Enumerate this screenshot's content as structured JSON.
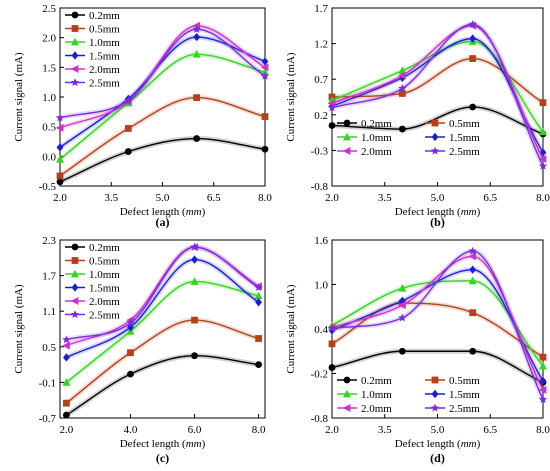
{
  "x_unit_parts": [
    "Defect length (",
    "mm",
    ")"
  ],
  "y_label": "Current signal (mA)",
  "colors": {
    "0.2mm": "#000000",
    "0.5mm": "#b5411c",
    "1.0mm": "#35d421",
    "1.5mm": "#1c1fd0",
    "2.0mm": "#cc33cc",
    "2.5mm": "#7a2fd6"
  },
  "chart_data": [
    {
      "type": "line",
      "panel_label": "(a)",
      "x_ticks": [
        "2.0",
        "3.5",
        "5.0",
        "6.5",
        "8.0"
      ],
      "y_ticks": [
        "-0.5",
        "0.0",
        "0.5",
        "1.0",
        "1.5",
        "2.0",
        "2.5"
      ],
      "xlim": [
        2.0,
        8.0
      ],
      "ylim": [
        -0.5,
        2.5
      ],
      "legend_position": "top-left",
      "legend_layout": "column",
      "x": [
        2.0,
        4.0,
        6.0,
        8.0
      ],
      "series": [
        {
          "name": "0.2mm",
          "marker": "circle",
          "values": [
            -0.43,
            0.08,
            0.3,
            0.12
          ]
        },
        {
          "name": "0.5mm",
          "marker": "square",
          "values": [
            -0.33,
            0.47,
            0.99,
            0.67
          ]
        },
        {
          "name": "1.0mm",
          "marker": "triangle-up",
          "values": [
            -0.05,
            0.9,
            1.72,
            1.42
          ]
        },
        {
          "name": "1.5mm",
          "marker": "diamond",
          "values": [
            0.15,
            0.97,
            2.01,
            1.6
          ]
        },
        {
          "name": "2.0mm",
          "marker": "triangle-left",
          "values": [
            0.48,
            0.92,
            2.2,
            1.5
          ]
        },
        {
          "name": "2.5mm",
          "marker": "star",
          "values": [
            0.65,
            0.94,
            2.14,
            1.35
          ]
        }
      ]
    },
    {
      "type": "line",
      "panel_label": "(b)",
      "x_ticks": [
        "2.0",
        "3.5",
        "5.0",
        "6.5",
        "8.0"
      ],
      "y_ticks": [
        "-0.8",
        "-0.3",
        "0.2",
        "0.7",
        "1.2",
        "1.7"
      ],
      "xlim": [
        2.0,
        8.0
      ],
      "ylim": [
        -0.8,
        1.7
      ],
      "legend_position": "bottom-left",
      "legend_layout": "two-column",
      "x": [
        2.0,
        4.0,
        6.0,
        8.0
      ],
      "series": [
        {
          "name": "0.2mm",
          "marker": "circle",
          "values": [
            0.05,
            0.0,
            0.31,
            -0.07
          ]
        },
        {
          "name": "0.5mm",
          "marker": "square",
          "values": [
            0.45,
            0.5,
            0.99,
            0.37
          ]
        },
        {
          "name": "1.0mm",
          "marker": "triangle-up",
          "values": [
            0.4,
            0.82,
            1.23,
            -0.04
          ]
        },
        {
          "name": "1.5mm",
          "marker": "diamond",
          "values": [
            0.32,
            0.72,
            1.27,
            -0.33
          ]
        },
        {
          "name": "2.0mm",
          "marker": "triangle-left",
          "values": [
            0.36,
            0.75,
            1.45,
            -0.42
          ]
        },
        {
          "name": "2.5mm",
          "marker": "star",
          "values": [
            0.3,
            0.57,
            1.47,
            -0.52
          ]
        }
      ]
    },
    {
      "type": "line",
      "panel_label": "(c)",
      "x_ticks": [
        "2.0",
        "4.0",
        "6.0",
        "8.0"
      ],
      "y_ticks": [
        "-0.7",
        "-0.1",
        "0.5",
        "1.1",
        "1.7",
        "2.3"
      ],
      "xlim": [
        1.8,
        8.2
      ],
      "ylim": [
        -0.7,
        2.3
      ],
      "legend_position": "top-left",
      "legend_layout": "column",
      "x": [
        2.0,
        4.0,
        6.0,
        8.0
      ],
      "series": [
        {
          "name": "0.2mm",
          "marker": "circle",
          "values": [
            -0.65,
            0.04,
            0.35,
            0.2
          ]
        },
        {
          "name": "0.5mm",
          "marker": "square",
          "values": [
            -0.45,
            0.4,
            0.95,
            0.64
          ]
        },
        {
          "name": "1.0mm",
          "marker": "triangle-up",
          "values": [
            -0.1,
            0.76,
            1.6,
            1.36
          ]
        },
        {
          "name": "1.5mm",
          "marker": "diamond",
          "values": [
            0.32,
            0.83,
            1.97,
            1.25
          ]
        },
        {
          "name": "2.0mm",
          "marker": "triangle-left",
          "values": [
            0.52,
            0.95,
            2.18,
            1.52
          ]
        },
        {
          "name": "2.5mm",
          "marker": "star",
          "values": [
            0.62,
            0.9,
            2.18,
            1.5
          ]
        }
      ]
    },
    {
      "type": "line",
      "panel_label": "(d)",
      "x_ticks": [
        "2.0",
        "3.5",
        "5.0",
        "6.5",
        "8.0"
      ],
      "y_ticks": [
        "-0.8",
        "-0.2",
        "0.4",
        "1.0",
        "1.6"
      ],
      "xlim": [
        2.0,
        8.0
      ],
      "ylim": [
        -0.8,
        1.6
      ],
      "legend_position": "bottom",
      "legend_layout": "two-column",
      "x": [
        2.0,
        4.0,
        6.0,
        8.0
      ],
      "series": [
        {
          "name": "0.2mm",
          "marker": "circle",
          "values": [
            -0.12,
            0.1,
            0.1,
            -0.32
          ]
        },
        {
          "name": "0.5mm",
          "marker": "square",
          "values": [
            0.2,
            0.75,
            0.62,
            0.02
          ]
        },
        {
          "name": "1.0mm",
          "marker": "triangle-up",
          "values": [
            0.45,
            0.95,
            1.05,
            -0.1
          ]
        },
        {
          "name": "1.5mm",
          "marker": "diamond",
          "values": [
            0.38,
            0.78,
            1.2,
            -0.3
          ]
        },
        {
          "name": "2.0mm",
          "marker": "triangle-left",
          "values": [
            0.42,
            0.72,
            1.38,
            -0.42
          ]
        },
        {
          "name": "2.5mm",
          "marker": "star",
          "values": [
            0.41,
            0.55,
            1.45,
            -0.55
          ]
        }
      ]
    }
  ]
}
